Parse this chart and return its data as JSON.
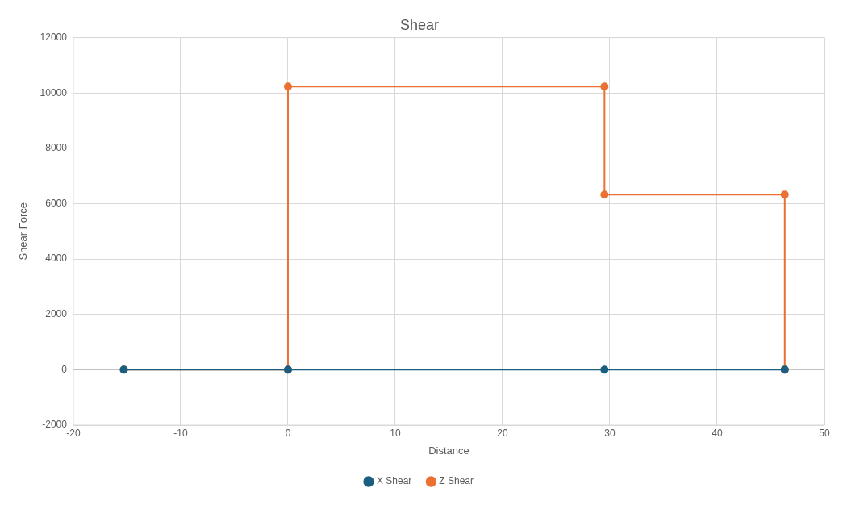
{
  "chart_data": {
    "type": "line",
    "title": "Shear",
    "xlabel": "Distance",
    "ylabel": "Shear Force",
    "xlim": [
      -20,
      50
    ],
    "xticks": [
      -20,
      -10,
      0,
      10,
      20,
      30,
      40,
      50
    ],
    "ylim": [
      -2000,
      12000
    ],
    "yticks": [
      -2000,
      0,
      2000,
      4000,
      6000,
      8000,
      10000,
      12000
    ],
    "grid": true,
    "legend": "bottom",
    "marker": "circle",
    "line_style": "solid",
    "series": [
      {
        "name": "X Shear",
        "color": "#1a5e80",
        "x": [
          -15.3,
          0,
          29.5,
          46.3
        ],
        "values": [
          0,
          0,
          0,
          0
        ]
      },
      {
        "name": "Z Shear",
        "color": "#ea7132",
        "x": [
          -15.3,
          0,
          0,
          29.5,
          29.5,
          46.3,
          46.3
        ],
        "values": [
          0,
          0,
          10230,
          10230,
          6330,
          6330,
          0
        ]
      }
    ]
  }
}
